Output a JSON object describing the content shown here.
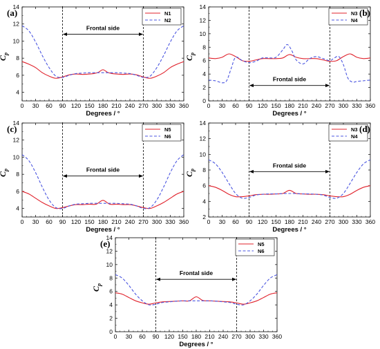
{
  "colors": {
    "solid": "#e0202a",
    "dashed": "#4a55e0",
    "axis": "#000000"
  },
  "chart_data": [
    {
      "type": "line",
      "panel": "(a)",
      "xlabel": "Degrees / °",
      "ylabel": "C",
      "ylabel_sub": "p",
      "xlim": [
        0,
        360
      ],
      "ylim": [
        3,
        14
      ],
      "xticks": [
        0,
        30,
        60,
        90,
        120,
        150,
        180,
        210,
        240,
        270,
        300,
        330,
        360
      ],
      "yticks": [
        4,
        6,
        8,
        10,
        12,
        14
      ],
      "annotation": "Frontal side",
      "annotation_y": 10.8,
      "vlines": [
        90,
        270
      ],
      "legend": "top-right",
      "series": [
        {
          "name": "N1",
          "style": "solid",
          "x": [
            0,
            15,
            30,
            45,
            60,
            75,
            90,
            105,
            120,
            135,
            150,
            160,
            170,
            180,
            190,
            200,
            210,
            225,
            240,
            255,
            270,
            285,
            300,
            315,
            330,
            345,
            360
          ],
          "y": [
            7.6,
            7.3,
            6.9,
            6.3,
            5.9,
            5.65,
            5.8,
            6.05,
            6.15,
            6.1,
            6.15,
            6.2,
            6.35,
            6.65,
            6.35,
            6.2,
            6.15,
            6.1,
            6.15,
            6.05,
            5.8,
            5.65,
            5.9,
            6.3,
            6.9,
            7.3,
            7.6
          ]
        },
        {
          "name": "N2",
          "style": "dashed",
          "x": [
            0,
            15,
            30,
            45,
            60,
            75,
            90,
            105,
            120,
            135,
            150,
            165,
            180,
            195,
            210,
            225,
            240,
            255,
            270,
            285,
            300,
            315,
            330,
            345,
            360
          ],
          "y": [
            11.8,
            11.2,
            9.9,
            8.3,
            6.9,
            5.9,
            5.75,
            6.0,
            6.2,
            6.25,
            6.3,
            6.3,
            6.3,
            6.3,
            6.3,
            6.25,
            6.2,
            6.0,
            5.75,
            5.9,
            6.9,
            8.3,
            9.9,
            11.2,
            11.8
          ]
        }
      ]
    },
    {
      "type": "line",
      "panel": "(b)",
      "xlabel": "Degrees / °",
      "ylabel": "C",
      "ylabel_sub": "p",
      "xlim": [
        0,
        360
      ],
      "ylim": [
        0,
        14
      ],
      "xticks": [
        0,
        30,
        60,
        90,
        120,
        150,
        180,
        210,
        240,
        270,
        300,
        330,
        360
      ],
      "yticks": [
        0,
        2,
        4,
        6,
        8,
        10,
        12,
        14
      ],
      "annotation": "Frontal side",
      "annotation_y": 2.3,
      "vlines": [
        90,
        270
      ],
      "legend": "top-right",
      "series": [
        {
          "name": "N3",
          "style": "solid",
          "x": [
            0,
            15,
            30,
            45,
            60,
            75,
            90,
            105,
            120,
            135,
            150,
            165,
            180,
            195,
            210,
            225,
            240,
            255,
            270,
            285,
            300,
            315,
            330,
            345,
            360
          ],
          "y": [
            6.4,
            6.3,
            6.5,
            7.0,
            6.6,
            6.0,
            5.9,
            6.1,
            6.3,
            6.3,
            6.3,
            6.4,
            6.9,
            6.5,
            6.3,
            6.3,
            6.3,
            6.1,
            5.9,
            6.0,
            6.6,
            7.0,
            6.5,
            6.3,
            6.4
          ]
        },
        {
          "name": "N4",
          "style": "dashed",
          "x": [
            0,
            15,
            30,
            40,
            50,
            60,
            75,
            90,
            105,
            120,
            135,
            150,
            165,
            175,
            185,
            195,
            210,
            225,
            240,
            255,
            270,
            280,
            290,
            300,
            310,
            320,
            330,
            345,
            360
          ],
          "y": [
            3.1,
            3.0,
            2.7,
            3.0,
            4.8,
            6.5,
            6.0,
            5.7,
            5.9,
            6.4,
            6.4,
            6.5,
            7.6,
            8.4,
            7.5,
            6.1,
            5.5,
            6.3,
            6.6,
            6.3,
            6.0,
            6.4,
            6.6,
            5.4,
            3.4,
            2.8,
            2.9,
            3.0,
            3.1
          ]
        }
      ]
    },
    {
      "type": "line",
      "panel": "(c)",
      "xlabel": "Degrees / °",
      "ylabel": "C",
      "ylabel_sub": "p",
      "xlim": [
        0,
        360
      ],
      "ylim": [
        3,
        14
      ],
      "xticks": [
        0,
        30,
        60,
        90,
        120,
        150,
        180,
        210,
        240,
        270,
        300,
        330,
        360
      ],
      "yticks": [
        4,
        6,
        8,
        10,
        12,
        14
      ],
      "annotation": "Frontal side",
      "annotation_y": 7.8,
      "vlines": [
        90,
        270
      ],
      "legend": "top-right",
      "series": [
        {
          "name": "N5",
          "style": "solid",
          "x": [
            0,
            15,
            30,
            45,
            60,
            75,
            90,
            105,
            120,
            135,
            150,
            165,
            180,
            195,
            210,
            225,
            240,
            255,
            270,
            285,
            300,
            315,
            330,
            345,
            360
          ],
          "y": [
            6.0,
            5.7,
            5.2,
            4.7,
            4.3,
            4.0,
            4.1,
            4.3,
            4.45,
            4.45,
            4.5,
            4.5,
            4.95,
            4.5,
            4.5,
            4.45,
            4.45,
            4.3,
            4.1,
            4.0,
            4.3,
            4.7,
            5.2,
            5.7,
            6.0
          ]
        },
        {
          "name": "N6",
          "style": "dashed",
          "x": [
            0,
            15,
            30,
            45,
            60,
            75,
            90,
            105,
            120,
            135,
            150,
            165,
            180,
            195,
            210,
            225,
            240,
            255,
            270,
            285,
            300,
            315,
            330,
            345,
            360
          ],
          "y": [
            10.3,
            9.6,
            8.2,
            6.5,
            5.0,
            4.1,
            4.0,
            4.3,
            4.5,
            4.55,
            4.6,
            4.6,
            4.6,
            4.6,
            4.6,
            4.55,
            4.5,
            4.3,
            4.0,
            4.1,
            5.0,
            6.5,
            8.2,
            9.6,
            10.3
          ]
        }
      ]
    },
    {
      "type": "line",
      "panel": "(d)",
      "xlabel": "Degrees / °",
      "ylabel": "C",
      "ylabel_sub": "p",
      "xlim": [
        0,
        360
      ],
      "ylim": [
        2,
        14
      ],
      "xticks": [
        0,
        30,
        60,
        90,
        120,
        150,
        180,
        210,
        240,
        270,
        300,
        330,
        360
      ],
      "yticks": [
        2,
        4,
        6,
        8,
        10,
        12,
        14
      ],
      "annotation": "Frontal side",
      "annotation_y": 7.8,
      "vlines": [
        90,
        270
      ],
      "legend": "top-right",
      "series": [
        {
          "name": "N3",
          "style": "solid",
          "x": [
            0,
            15,
            30,
            45,
            60,
            75,
            90,
            105,
            120,
            135,
            150,
            165,
            180,
            195,
            210,
            225,
            240,
            255,
            270,
            285,
            300,
            315,
            330,
            345,
            360
          ],
          "y": [
            6.0,
            5.8,
            5.4,
            4.9,
            4.6,
            4.6,
            4.7,
            4.85,
            4.9,
            4.9,
            4.95,
            5.0,
            5.4,
            5.0,
            4.95,
            4.9,
            4.9,
            4.85,
            4.7,
            4.6,
            4.6,
            4.9,
            5.4,
            5.8,
            6.0
          ]
        },
        {
          "name": "N4",
          "style": "dashed",
          "x": [
            0,
            15,
            30,
            45,
            60,
            75,
            90,
            105,
            120,
            135,
            150,
            165,
            180,
            195,
            210,
            225,
            240,
            255,
            270,
            285,
            300,
            315,
            330,
            345,
            360
          ],
          "y": [
            9.3,
            8.8,
            7.7,
            6.3,
            5.0,
            4.4,
            4.5,
            4.8,
            4.9,
            4.95,
            4.95,
            5.0,
            5.0,
            5.0,
            4.95,
            4.95,
            4.9,
            4.8,
            4.5,
            4.4,
            5.0,
            6.3,
            7.7,
            8.8,
            9.3
          ]
        }
      ]
    },
    {
      "type": "line",
      "panel": "(e)",
      "xlabel": "Degrees / °",
      "ylabel": "C",
      "ylabel_sub": "p",
      "xlim": [
        0,
        360
      ],
      "ylim": [
        0,
        14
      ],
      "xticks": [
        0,
        30,
        60,
        90,
        120,
        150,
        180,
        210,
        240,
        270,
        300,
        330,
        360
      ],
      "yticks": [
        0,
        2,
        4,
        6,
        8,
        10,
        12,
        14
      ],
      "annotation": "Frontal side",
      "annotation_y": 7.8,
      "vlines": [
        90,
        270
      ],
      "legend": "top-right",
      "series": [
        {
          "name": "N5",
          "style": "solid",
          "x": [
            0,
            15,
            30,
            45,
            60,
            75,
            90,
            105,
            120,
            135,
            150,
            165,
            180,
            195,
            210,
            225,
            240,
            255,
            270,
            285,
            300,
            315,
            330,
            345,
            360
          ],
          "y": [
            5.8,
            5.6,
            5.1,
            4.6,
            4.3,
            4.1,
            4.3,
            4.45,
            4.5,
            4.55,
            4.6,
            4.6,
            5.2,
            4.65,
            4.6,
            4.55,
            4.5,
            4.45,
            4.3,
            4.1,
            4.3,
            4.6,
            5.1,
            5.6,
            5.8
          ]
        },
        {
          "name": "N6",
          "style": "dashed",
          "x": [
            0,
            15,
            30,
            45,
            60,
            75,
            90,
            105,
            120,
            135,
            150,
            165,
            180,
            195,
            210,
            225,
            240,
            255,
            270,
            285,
            300,
            315,
            330,
            345,
            360
          ],
          "y": [
            8.5,
            8.0,
            6.9,
            5.6,
            4.6,
            4.0,
            4.1,
            4.35,
            4.45,
            4.55,
            4.6,
            4.6,
            4.6,
            4.6,
            4.6,
            4.55,
            4.45,
            4.35,
            4.1,
            4.0,
            4.6,
            5.6,
            6.9,
            8.0,
            8.5
          ]
        }
      ]
    }
  ]
}
